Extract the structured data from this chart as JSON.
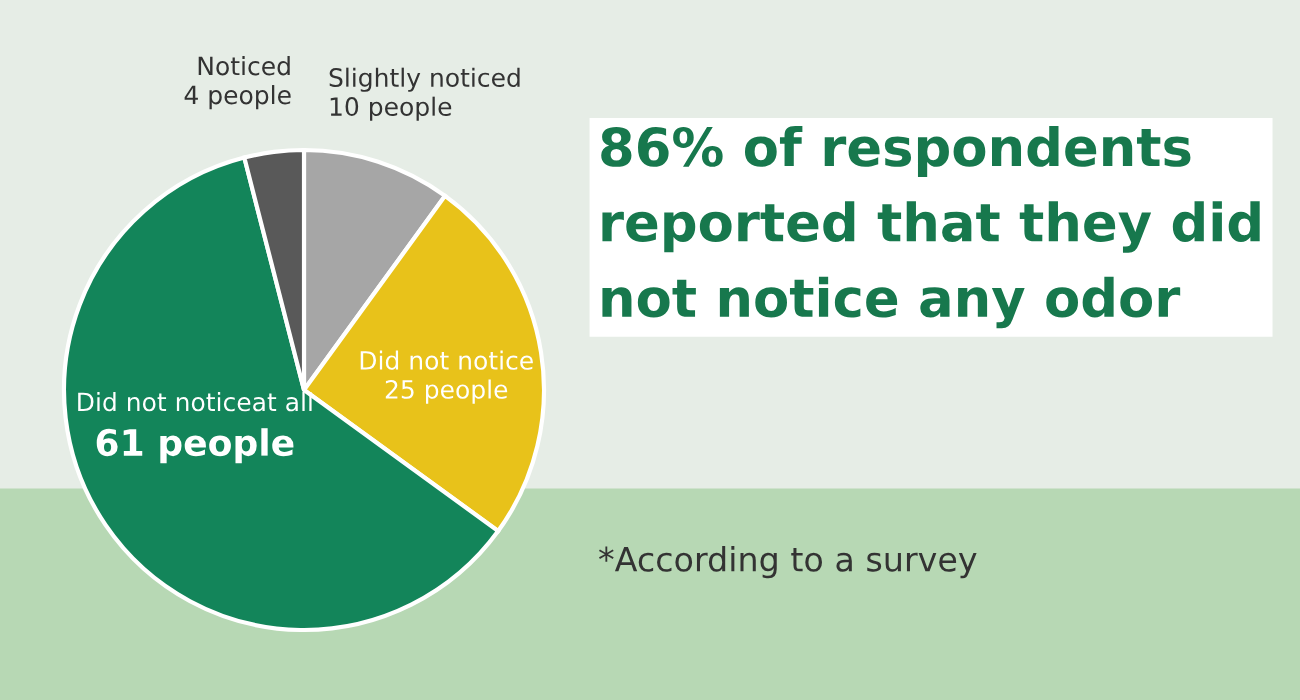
{
  "chart_data": {
    "type": "pie",
    "title": "86% of respondents reported that they did not notice any odor",
    "categories": [
      "Slightly noticed",
      "Did not notice",
      "Did not noticeat all",
      "Noticed"
    ],
    "values": [
      10,
      25,
      61,
      4
    ],
    "value_labels": [
      "10 people",
      "25 people",
      "61 people",
      "4 people"
    ],
    "colors": [
      "#a6a6a6",
      "#e8c21a",
      "#13855a",
      "#595959"
    ],
    "annotations": [
      "*According to a survey"
    ],
    "legend": false
  }
}
